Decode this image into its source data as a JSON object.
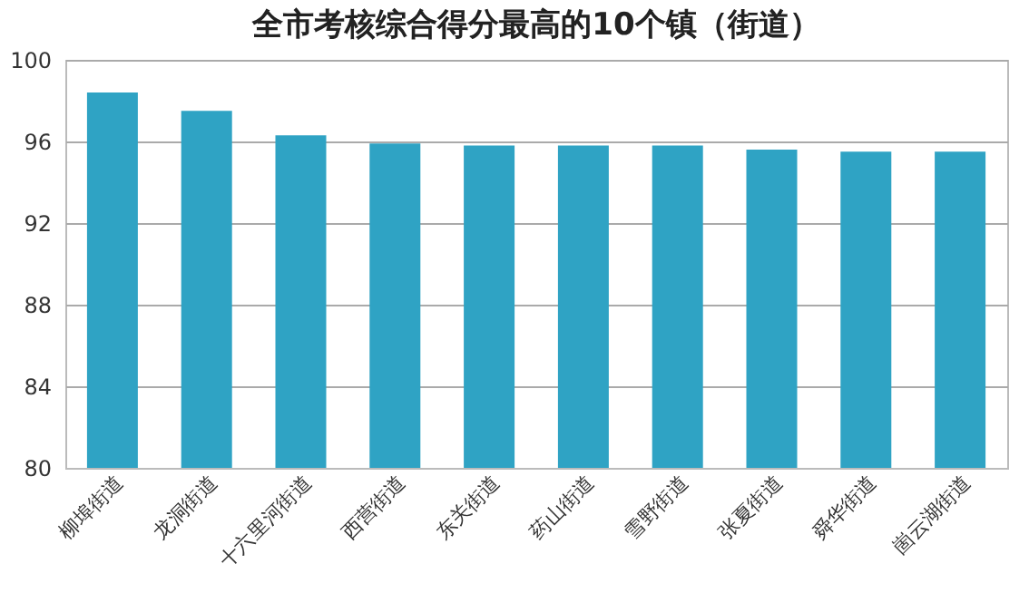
{
  "chart_data": {
    "type": "bar",
    "title": "全市考核综合得分最高的10个镇（街道）",
    "categories": [
      "柳埠街道",
      "龙洞街道",
      "十六里河街道",
      "西营街道",
      "东关街道",
      "药山街道",
      "雪野街道",
      "张夏街道",
      "舜华街道",
      "崮云湖街道"
    ],
    "values": [
      98.4,
      97.5,
      96.3,
      95.9,
      95.8,
      95.8,
      95.8,
      95.6,
      95.5,
      95.5
    ],
    "color": "#2fa3c4",
    "ylim": [
      80,
      100
    ],
    "yticks": [
      80,
      84,
      88,
      92,
      96,
      100
    ],
    "grid": "y"
  }
}
